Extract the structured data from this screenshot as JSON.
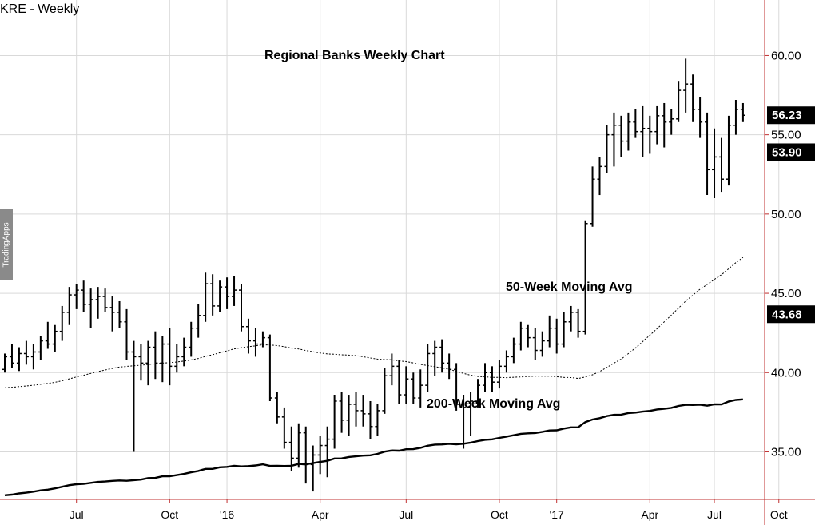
{
  "symbol_title": "KRE - Weekly",
  "watermark": "TradingApps",
  "colors": {
    "axis": "#c03030",
    "grid": "#d9d9d9",
    "bars": "#000000",
    "flag_bg": "#000000",
    "flag_text": "#ffffff"
  },
  "chart_data": {
    "type": "ohlc",
    "title": "Regional Banks Weekly Chart",
    "x_tick_labels": [
      "Jul",
      "Oct",
      "'16",
      "Apr",
      "Jul",
      "Oct",
      "'17",
      "Apr",
      "Jul",
      "Oct"
    ],
    "y_tick_labels": [
      "60.00",
      "55.00",
      "50.00",
      "45.00",
      "40.00",
      "35.00"
    ],
    "y_ticks": [
      60,
      55,
      50,
      45,
      40,
      35
    ],
    "ylim": [
      32,
      63.5
    ],
    "bar_count": 104,
    "grid": true,
    "annotations": [
      "50-Week Moving Avg",
      "200-Week Moving Avg"
    ],
    "price_flags": [
      {
        "label": "56.23",
        "value": 56.23
      },
      {
        "label": "53.90",
        "value": 53.9
      },
      {
        "label": "43.68",
        "value": 43.68
      }
    ],
    "weekly_bars": [
      [
        40.2,
        41.2,
        40.0,
        41.0
      ],
      [
        41.0,
        41.8,
        40.3,
        40.6
      ],
      [
        40.6,
        41.6,
        40.1,
        41.2
      ],
      [
        41.2,
        42.0,
        40.5,
        41.0
      ],
      [
        41.0,
        41.8,
        40.2,
        41.3
      ],
      [
        41.3,
        42.3,
        40.8,
        42.0
      ],
      [
        42.0,
        43.2,
        41.5,
        41.8
      ],
      [
        41.8,
        43.0,
        41.3,
        42.6
      ],
      [
        42.6,
        44.2,
        42.0,
        43.8
      ],
      [
        43.8,
        45.4,
        43.0,
        44.9
      ],
      [
        44.9,
        45.6,
        44.0,
        45.2
      ],
      [
        45.2,
        45.8,
        43.8,
        44.3
      ],
      [
        44.3,
        45.3,
        42.8,
        44.6
      ],
      [
        44.6,
        45.4,
        43.4,
        44.8
      ],
      [
        44.8,
        45.3,
        43.8,
        44.1
      ],
      [
        44.1,
        44.8,
        42.6,
        43.8
      ],
      [
        43.8,
        44.5,
        42.8,
        43.2
      ],
      [
        43.2,
        44.0,
        40.8,
        41.3
      ],
      [
        41.3,
        42.0,
        35.0,
        41.0
      ],
      [
        41.0,
        41.8,
        39.5,
        40.6
      ],
      [
        40.6,
        42.0,
        39.2,
        41.6
      ],
      [
        41.6,
        42.6,
        39.6,
        40.6
      ],
      [
        40.6,
        42.3,
        39.4,
        41.8
      ],
      [
        41.8,
        42.8,
        39.2,
        40.4
      ],
      [
        40.4,
        41.8,
        40.0,
        41.0
      ],
      [
        41.0,
        42.2,
        40.4,
        41.6
      ],
      [
        41.6,
        43.2,
        41.0,
        42.8
      ],
      [
        42.8,
        44.3,
        42.2,
        43.6
      ],
      [
        43.6,
        46.3,
        43.2,
        45.6
      ],
      [
        45.6,
        46.2,
        43.6,
        44.2
      ],
      [
        44.2,
        45.8,
        43.8,
        45.4
      ],
      [
        45.4,
        46.0,
        44.0,
        44.8
      ],
      [
        44.8,
        46.1,
        44.2,
        45.2
      ],
      [
        45.2,
        45.6,
        42.6,
        42.9
      ],
      [
        42.9,
        43.4,
        41.2,
        42.0
      ],
      [
        42.0,
        42.8,
        41.0,
        41.8
      ],
      [
        41.8,
        42.6,
        41.6,
        42.2
      ],
      [
        42.2,
        42.4,
        38.2,
        38.4
      ],
      [
        38.4,
        38.8,
        36.8,
        37.2
      ],
      [
        37.2,
        37.8,
        35.2,
        35.6
      ],
      [
        35.6,
        36.6,
        33.8,
        34.6
      ],
      [
        34.6,
        36.8,
        34.0,
        36.2
      ],
      [
        36.2,
        36.6,
        33.0,
        34.2
      ],
      [
        34.2,
        35.4,
        32.5,
        34.8
      ],
      [
        34.8,
        36.0,
        33.6,
        35.4
      ],
      [
        35.4,
        36.6,
        33.4,
        35.8
      ],
      [
        35.8,
        38.6,
        35.2,
        38.2
      ],
      [
        38.2,
        38.8,
        36.2,
        37.0
      ],
      [
        37.0,
        38.6,
        36.0,
        38.0
      ],
      [
        38.0,
        38.8,
        36.6,
        37.6
      ],
      [
        37.6,
        38.6,
        36.6,
        37.4
      ],
      [
        37.4,
        38.2,
        35.8,
        36.6
      ],
      [
        36.6,
        38.0,
        36.0,
        37.6
      ],
      [
        37.6,
        40.3,
        37.4,
        39.8
      ],
      [
        39.8,
        41.2,
        39.2,
        40.4
      ],
      [
        40.4,
        40.8,
        38.0,
        38.6
      ],
      [
        38.6,
        40.4,
        38.0,
        39.6
      ],
      [
        39.6,
        40.0,
        38.0,
        38.4
      ],
      [
        38.4,
        40.2,
        37.8,
        39.2
      ],
      [
        39.2,
        41.8,
        38.8,
        41.2
      ],
      [
        41.2,
        42.0,
        39.8,
        41.6
      ],
      [
        41.6,
        42.1,
        40.0,
        40.6
      ],
      [
        40.6,
        41.2,
        39.6,
        40.2
      ],
      [
        40.2,
        40.6,
        37.6,
        38.0
      ],
      [
        38.0,
        38.6,
        35.2,
        37.8
      ],
      [
        37.8,
        38.8,
        36.0,
        38.2
      ],
      [
        38.2,
        39.6,
        37.8,
        39.2
      ],
      [
        39.2,
        40.6,
        38.8,
        40.0
      ],
      [
        40.0,
        40.4,
        38.8,
        39.4
      ],
      [
        39.4,
        40.8,
        39.0,
        40.4
      ],
      [
        40.4,
        41.4,
        40.0,
        41.0
      ],
      [
        41.0,
        42.2,
        40.6,
        41.8
      ],
      [
        41.8,
        43.2,
        41.4,
        42.8
      ],
      [
        42.8,
        43.0,
        41.6,
        42.2
      ],
      [
        42.2,
        42.8,
        40.8,
        41.4
      ],
      [
        41.4,
        42.6,
        41.0,
        42.0
      ],
      [
        42.0,
        43.6,
        41.6,
        42.8
      ],
      [
        42.8,
        43.4,
        41.2,
        41.8
      ],
      [
        41.8,
        43.8,
        41.6,
        43.2
      ],
      [
        43.2,
        44.2,
        42.6,
        43.8
      ],
      [
        43.8,
        44.0,
        42.2,
        42.6
      ],
      [
        42.6,
        49.6,
        42.4,
        49.4
      ],
      [
        49.4,
        53.0,
        49.2,
        52.2
      ],
      [
        52.2,
        53.6,
        51.2,
        53.0
      ],
      [
        53.0,
        55.6,
        52.6,
        55.0
      ],
      [
        55.0,
        56.4,
        53.0,
        55.6
      ],
      [
        55.6,
        56.2,
        53.6,
        54.6
      ],
      [
        54.6,
        56.4,
        54.0,
        55.8
      ],
      [
        55.8,
        56.6,
        54.8,
        55.2
      ],
      [
        55.2,
        56.8,
        53.6,
        55.4
      ],
      [
        55.4,
        56.2,
        53.8,
        55.2
      ],
      [
        55.2,
        56.8,
        54.4,
        56.2
      ],
      [
        56.2,
        57.0,
        54.2,
        55.8
      ],
      [
        55.8,
        56.6,
        55.0,
        56.0
      ],
      [
        56.0,
        58.4,
        55.8,
        57.8
      ],
      [
        57.8,
        59.8,
        56.4,
        58.2
      ],
      [
        58.2,
        58.8,
        55.8,
        56.6
      ],
      [
        56.6,
        57.4,
        54.8,
        55.8
      ],
      [
        55.8,
        56.4,
        51.2,
        52.8
      ],
      [
        52.8,
        55.4,
        51.0,
        53.6
      ],
      [
        53.6,
        54.8,
        51.4,
        52.2
      ],
      [
        52.2,
        56.2,
        51.8,
        55.6
      ],
      [
        55.6,
        57.2,
        55.0,
        56.6
      ],
      [
        56.6,
        57.0,
        55.8,
        56.23
      ]
    ]
  }
}
